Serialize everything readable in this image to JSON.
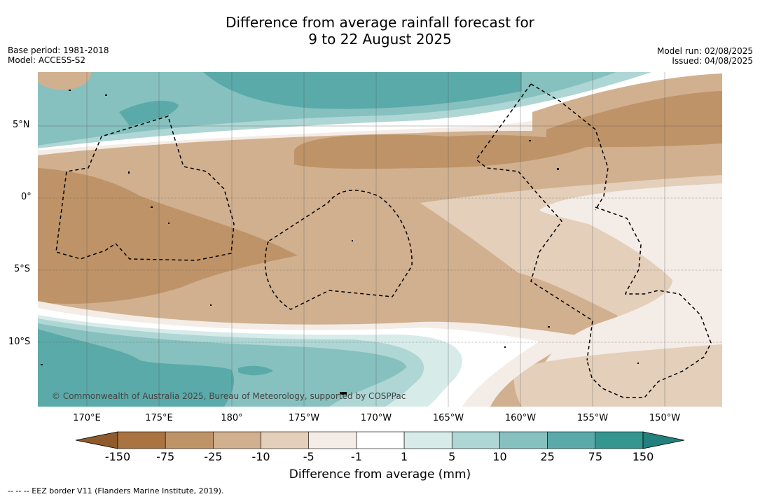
{
  "title_line1": "Difference from average rainfall forecast for",
  "title_line2": "9 to 22 August 2025",
  "base_period": "Base period: 1981-2018",
  "model": "Model: ACCESS-S2",
  "model_run": "Model run: 02/08/2025",
  "issued": "Issued: 04/08/2025",
  "copyright": "© Commonwealth of Australia 2025, Bureau of Meteorology, supported by COSPPac",
  "lat_labels": [
    "5°N",
    "0°",
    "5°S",
    "10°S"
  ],
  "lon_labels": [
    "170°E",
    "175°E",
    "180°",
    "175°W",
    "170°W",
    "165°W",
    "160°W",
    "155°W",
    "150°W"
  ],
  "colorbar": {
    "ticks": [
      "-150",
      "-75",
      "-25",
      "-10",
      "-5",
      "-1",
      "1",
      "5",
      "10",
      "25",
      "75",
      "150"
    ],
    "colors": [
      "#a97441",
      "#be9367",
      "#d1b08f",
      "#e4cfba",
      "#f4ece6",
      "#ffffff",
      "#d7ebe9",
      "#aed6d4",
      "#86c1bf",
      "#5aaaa9",
      "#35958f"
    ],
    "under_color": "#8f5a2c",
    "over_color": "#22807d",
    "title": "Difference from average (mm)"
  },
  "footnote": "--  --  -- EEZ border V11 (Flanders Marine Institute, 2019)."
}
